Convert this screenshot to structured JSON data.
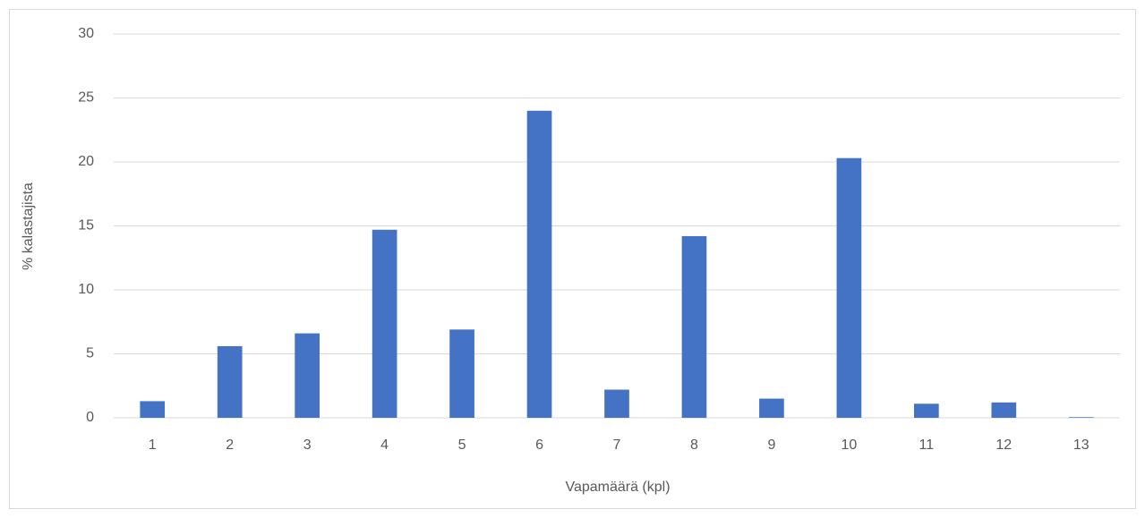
{
  "chart_data": {
    "type": "bar",
    "xlabel": "Vapamäärä (kpl)",
    "ylabel": "% kalastajista",
    "categories": [
      "1",
      "2",
      "3",
      "4",
      "5",
      "6",
      "7",
      "8",
      "9",
      "10",
      "11",
      "12",
      "13"
    ],
    "values": [
      1.3,
      5.6,
      6.6,
      14.7,
      6.9,
      24.0,
      2.2,
      14.2,
      1.5,
      20.3,
      1.1,
      1.2,
      0.05
    ],
    "color": "#4472c4",
    "ylim": [
      0,
      30
    ],
    "yticks": [
      0,
      5,
      10,
      15,
      20,
      25,
      30
    ],
    "grid": true
  }
}
